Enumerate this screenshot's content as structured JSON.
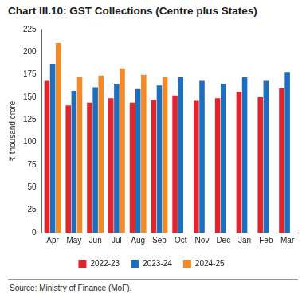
{
  "chart_data": {
    "type": "bar",
    "title": "Chart III.10: GST Collections (Centre plus States)",
    "y_label": "₹ thousand crore",
    "source": "Source: Ministry of Finance (MoF).",
    "categories": [
      "Apr",
      "May",
      "Jun",
      "Jul",
      "Aug",
      "Sep",
      "Oct",
      "Nov",
      "Dec",
      "Jan",
      "Feb",
      "Mar"
    ],
    "series": [
      {
        "name": "2022-23",
        "color": "#e0262c",
        "values": [
          168,
          141,
          144,
          149,
          144,
          147,
          152,
          146,
          149,
          156,
          150,
          160
        ]
      },
      {
        "name": "2023-24",
        "color": "#1d6fbd",
        "values": [
          187,
          157,
          161,
          165,
          159,
          163,
          172,
          168,
          165,
          172,
          168,
          178
        ]
      },
      {
        "name": "2024-25",
        "color": "#f28a2a",
        "values": [
          210,
          173,
          174,
          182,
          175,
          173,
          null,
          null,
          null,
          null,
          null,
          null
        ]
      }
    ],
    "ylim": [
      0,
      225
    ],
    "yticks": [
      0,
      25,
      50,
      75,
      100,
      125,
      150,
      175,
      200,
      225
    ],
    "grid": false,
    "legend": "bottom"
  }
}
